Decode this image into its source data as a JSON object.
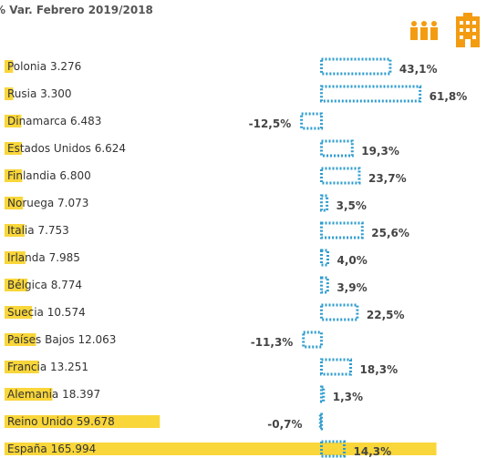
{
  "chart_data": {
    "type": "bar",
    "title": "% Var. Febrero 2019/2018",
    "categories": [
      "Polonia",
      "Rusia",
      "Dinamarca",
      "Estados Unidos",
      "Finlandia",
      "Noruega",
      "Italia",
      "Irlanda",
      "Bélgica",
      "Suecia",
      "Países Bajos",
      "Francia",
      "Alemania",
      "Reino Unido",
      "España"
    ],
    "series": [
      {
        "color": "#f9d63a",
        "values": [
          3276,
          3300,
          6483,
          6624,
          6800,
          7073,
          7753,
          7985,
          8774,
          10574,
          12063,
          13251,
          18397,
          59678,
          165994
        ],
        "value_labels": [
          "3.276",
          "3.300",
          "6.483",
          "6.624",
          "6.800",
          "7.073",
          "7.753",
          "7.985",
          "8.774",
          "10.574",
          "12.063",
          "13.251",
          "18.397",
          "59.678",
          "165.994"
        ]
      },
      {
        "color": "#2e9ccf",
        "axis": "x2",
        "values": [
          43.1,
          61.8,
          -12.5,
          19.3,
          23.7,
          3.5,
          25.6,
          4.0,
          3.9,
          22.5,
          -11.3,
          18.3,
          1.3,
          -0.7,
          14.3
        ],
        "value_labels": [
          "43,1%",
          "61,8%",
          "-12,5%",
          "19,3%",
          "23,7%",
          "3,5%",
          "25,6%",
          "4,0%",
          "3,9%",
          "22,5%",
          "-11,3%",
          "18,3%",
          "1,3%",
          "-0,7%",
          "14,3%"
        ]
      }
    ],
    "xlim": [
      0,
      170000
    ],
    "x2lim": [
      -30,
      90
    ]
  }
}
